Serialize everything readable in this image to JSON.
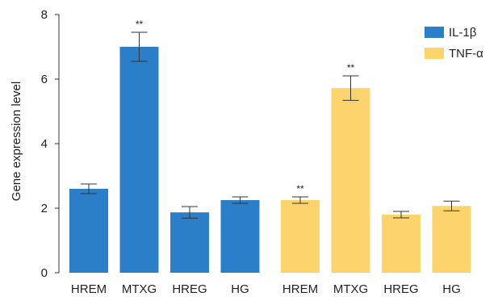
{
  "chart_data": {
    "type": "bar",
    "ylabel": "Gene expression level",
    "ylim": [
      0,
      8
    ],
    "yticks": [
      0,
      2,
      4,
      6,
      8
    ],
    "grid": false,
    "legend_position": "top-right",
    "groups": [
      {
        "name": "IL-1β",
        "color": "#2a7fc8",
        "categories": [
          "HREM",
          "MTXG",
          "HREG",
          "HG"
        ],
        "values": [
          2.6,
          7.0,
          1.87,
          2.25
        ],
        "errors": [
          0.15,
          0.45,
          0.18,
          0.1
        ],
        "annotations": [
          "",
          "**",
          "",
          ""
        ]
      },
      {
        "name": "TNF-α",
        "color": "#fdd46c",
        "categories": [
          "HREM",
          "MTXG",
          "HREG",
          "HG"
        ],
        "values": [
          2.25,
          5.72,
          1.8,
          2.07
        ],
        "errors": [
          0.1,
          0.38,
          0.1,
          0.15
        ],
        "annotations": [
          "**",
          "**",
          "",
          ""
        ]
      }
    ]
  }
}
